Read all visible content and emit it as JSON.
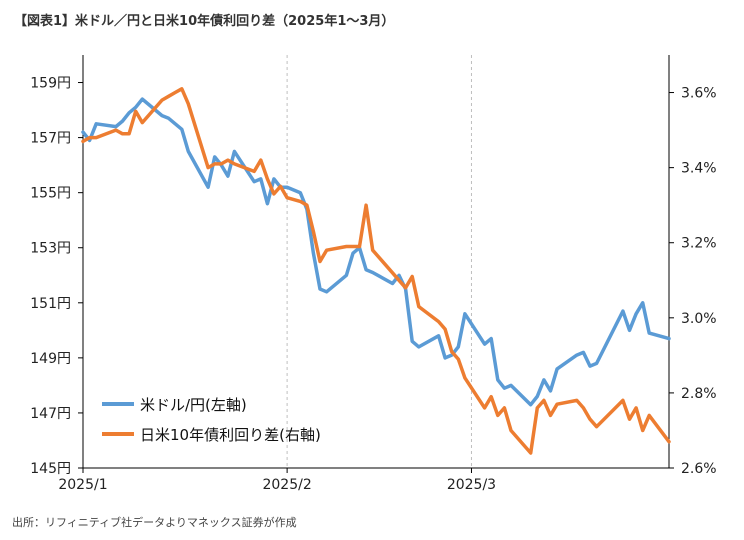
{
  "title": "【図表1】米ドル／円と日米10年債利回り差（2025年1〜3月）",
  "source": "出所：リフィニティブ社データよりマネックス証券が作成",
  "colors": {
    "usdjpy": "#5b9bd5",
    "spread": "#ed7d31",
    "axis": "#000000",
    "grid": "#bfbfbf"
  },
  "chart_data": {
    "type": "line",
    "left_axis": {
      "ylim": [
        145,
        160
      ],
      "ticks": [
        145,
        147,
        149,
        151,
        153,
        155,
        157,
        159
      ],
      "tick_labels": [
        "145円",
        "147円",
        "149円",
        "151円",
        "153円",
        "155円",
        "157円",
        "159円"
      ]
    },
    "right_axis": {
      "ylim": [
        2.6,
        3.7
      ],
      "ticks": [
        2.6,
        2.8,
        3.0,
        3.2,
        3.4,
        3.6
      ],
      "tick_labels": [
        "2.6%",
        "2.8%",
        "3.0%",
        "3.2%",
        "3.4%",
        "3.6%"
      ]
    },
    "x_axis": {
      "range": [
        "2025-01-01",
        "2025-03-31"
      ],
      "ticks": [
        "2025-01-01",
        "2025-02-01",
        "2025-03-01"
      ],
      "tick_labels": [
        "2025/1",
        "2025/2",
        "2025/3"
      ]
    },
    "grid": {
      "vertical": true,
      "horizontal": false
    },
    "legend_position": "lower-left",
    "series": [
      {
        "name": "米ドル/円(左軸)",
        "axis": "left",
        "points": [
          [
            "2025-01-01",
            157.2
          ],
          [
            "2025-01-02",
            156.9
          ],
          [
            "2025-01-03",
            157.5
          ],
          [
            "2025-01-06",
            157.4
          ],
          [
            "2025-01-07",
            157.6
          ],
          [
            "2025-01-08",
            157.9
          ],
          [
            "2025-01-09",
            158.1
          ],
          [
            "2025-01-10",
            158.4
          ],
          [
            "2025-01-13",
            157.8
          ],
          [
            "2025-01-14",
            157.7
          ],
          [
            "2025-01-15",
            157.5
          ],
          [
            "2025-01-16",
            157.3
          ],
          [
            "2025-01-17",
            156.5
          ],
          [
            "2025-01-20",
            155.2
          ],
          [
            "2025-01-21",
            156.3
          ],
          [
            "2025-01-22",
            156.0
          ],
          [
            "2025-01-23",
            155.6
          ],
          [
            "2025-01-24",
            156.5
          ],
          [
            "2025-01-27",
            155.4
          ],
          [
            "2025-01-28",
            155.5
          ],
          [
            "2025-01-29",
            154.6
          ],
          [
            "2025-01-30",
            155.5
          ],
          [
            "2025-01-31",
            155.2
          ],
          [
            "2025-02-01",
            155.2
          ],
          [
            "2025-02-03",
            155.0
          ],
          [
            "2025-02-04",
            154.4
          ],
          [
            "2025-02-05",
            152.8
          ],
          [
            "2025-02-06",
            151.5
          ],
          [
            "2025-02-07",
            151.4
          ],
          [
            "2025-02-10",
            152.0
          ],
          [
            "2025-02-11",
            152.8
          ],
          [
            "2025-02-12",
            153.0
          ],
          [
            "2025-02-13",
            152.2
          ],
          [
            "2025-02-14",
            152.1
          ],
          [
            "2025-02-17",
            151.7
          ],
          [
            "2025-02-18",
            152.0
          ],
          [
            "2025-02-19",
            151.5
          ],
          [
            "2025-02-20",
            149.6
          ],
          [
            "2025-02-21",
            149.4
          ],
          [
            "2025-02-24",
            149.8
          ],
          [
            "2025-02-25",
            149.0
          ],
          [
            "2025-02-26",
            149.1
          ],
          [
            "2025-02-27",
            149.4
          ],
          [
            "2025-02-28",
            150.6
          ],
          [
            "2025-03-03",
            149.5
          ],
          [
            "2025-03-04",
            149.7
          ],
          [
            "2025-03-05",
            148.2
          ],
          [
            "2025-03-06",
            147.9
          ],
          [
            "2025-03-07",
            148.0
          ],
          [
            "2025-03-10",
            147.3
          ],
          [
            "2025-03-11",
            147.6
          ],
          [
            "2025-03-12",
            148.2
          ],
          [
            "2025-03-13",
            147.8
          ],
          [
            "2025-03-14",
            148.6
          ],
          [
            "2025-03-17",
            149.1
          ],
          [
            "2025-03-18",
            149.2
          ],
          [
            "2025-03-19",
            148.7
          ],
          [
            "2025-03-20",
            148.8
          ],
          [
            "2025-03-24",
            150.7
          ],
          [
            "2025-03-25",
            150.0
          ],
          [
            "2025-03-26",
            150.6
          ],
          [
            "2025-03-27",
            151.0
          ],
          [
            "2025-03-28",
            149.9
          ],
          [
            "2025-03-31",
            149.7
          ]
        ]
      },
      {
        "name": "日米10年債利回り差(右軸)",
        "axis": "right",
        "points": [
          [
            "2025-01-01",
            3.47
          ],
          [
            "2025-01-02",
            3.48
          ],
          [
            "2025-01-03",
            3.48
          ],
          [
            "2025-01-06",
            3.5
          ],
          [
            "2025-01-07",
            3.49
          ],
          [
            "2025-01-08",
            3.49
          ],
          [
            "2025-01-09",
            3.55
          ],
          [
            "2025-01-10",
            3.52
          ],
          [
            "2025-01-13",
            3.58
          ],
          [
            "2025-01-14",
            3.59
          ],
          [
            "2025-01-15",
            3.6
          ],
          [
            "2025-01-16",
            3.61
          ],
          [
            "2025-01-17",
            3.57
          ],
          [
            "2025-01-20",
            3.4
          ],
          [
            "2025-01-21",
            3.41
          ],
          [
            "2025-01-22",
            3.41
          ],
          [
            "2025-01-23",
            3.42
          ],
          [
            "2025-01-24",
            3.41
          ],
          [
            "2025-01-27",
            3.39
          ],
          [
            "2025-01-28",
            3.42
          ],
          [
            "2025-01-29",
            3.37
          ],
          [
            "2025-01-30",
            3.33
          ],
          [
            "2025-01-31",
            3.35
          ],
          [
            "2025-02-01",
            3.32
          ],
          [
            "2025-02-03",
            3.31
          ],
          [
            "2025-02-04",
            3.3
          ],
          [
            "2025-02-05",
            3.23
          ],
          [
            "2025-02-06",
            3.15
          ],
          [
            "2025-02-07",
            3.18
          ],
          [
            "2025-02-10",
            3.19
          ],
          [
            "2025-02-11",
            3.19
          ],
          [
            "2025-02-12",
            3.19
          ],
          [
            "2025-02-13",
            3.3
          ],
          [
            "2025-02-14",
            3.18
          ],
          [
            "2025-02-17",
            3.12
          ],
          [
            "2025-02-18",
            3.1
          ],
          [
            "2025-02-19",
            3.08
          ],
          [
            "2025-02-20",
            3.11
          ],
          [
            "2025-02-21",
            3.03
          ],
          [
            "2025-02-24",
            2.99
          ],
          [
            "2025-02-25",
            2.97
          ],
          [
            "2025-02-26",
            2.91
          ],
          [
            "2025-02-27",
            2.89
          ],
          [
            "2025-02-28",
            2.84
          ],
          [
            "2025-03-03",
            2.76
          ],
          [
            "2025-03-04",
            2.79
          ],
          [
            "2025-03-05",
            2.74
          ],
          [
            "2025-03-06",
            2.76
          ],
          [
            "2025-03-07",
            2.7
          ],
          [
            "2025-03-10",
            2.64
          ],
          [
            "2025-03-11",
            2.76
          ],
          [
            "2025-03-12",
            2.78
          ],
          [
            "2025-03-13",
            2.74
          ],
          [
            "2025-03-14",
            2.77
          ],
          [
            "2025-03-17",
            2.78
          ],
          [
            "2025-03-18",
            2.76
          ],
          [
            "2025-03-19",
            2.73
          ],
          [
            "2025-03-20",
            2.71
          ],
          [
            "2025-03-24",
            2.78
          ],
          [
            "2025-03-25",
            2.73
          ],
          [
            "2025-03-26",
            2.76
          ],
          [
            "2025-03-27",
            2.7
          ],
          [
            "2025-03-28",
            2.74
          ],
          [
            "2025-03-31",
            2.67
          ]
        ]
      }
    ]
  }
}
